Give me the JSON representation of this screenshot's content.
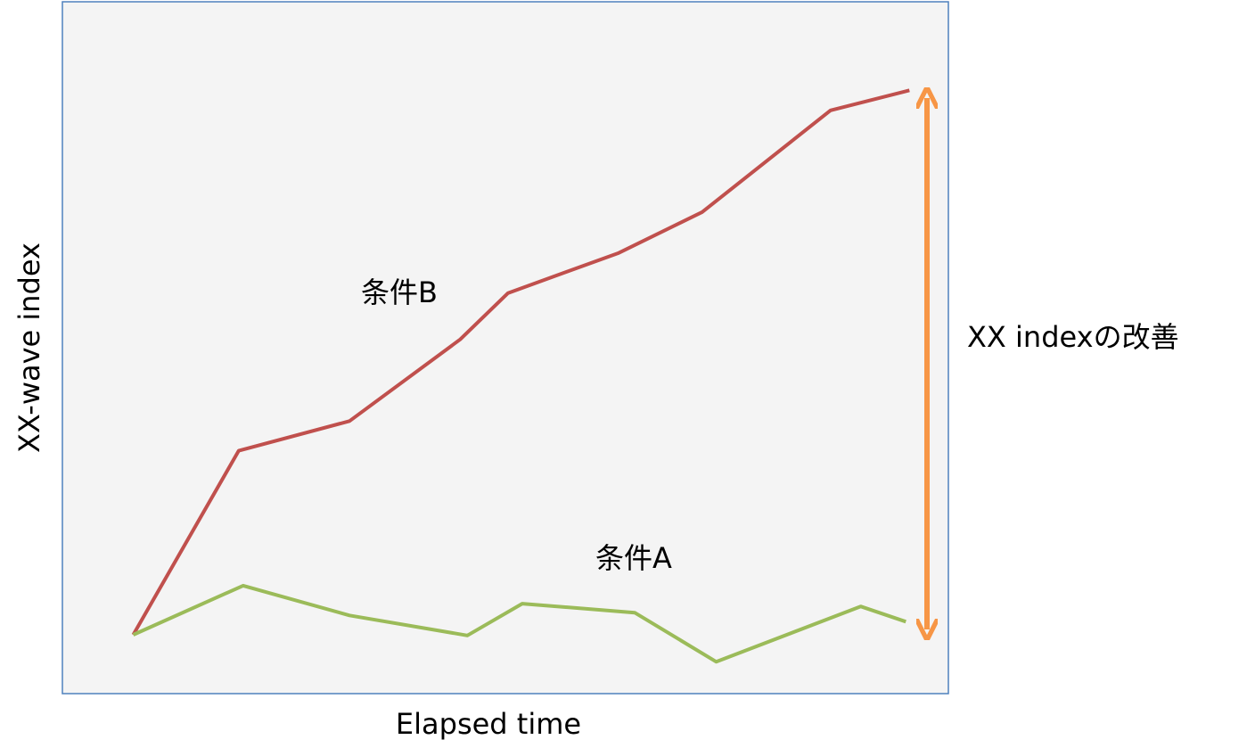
{
  "chart_data": {
    "type": "line",
    "xlabel": "Elapsed time",
    "ylabel": "XX-wave index",
    "xlim": [
      0,
      100
    ],
    "ylim": [
      0,
      100
    ],
    "series": [
      {
        "name": "条件B",
        "color": "#c0504d",
        "x": [
          8.0,
          19.9,
          32.4,
          44.9,
          50.3,
          62.8,
          72.2,
          86.7,
          95.6
        ],
        "values": [
          8.5,
          35.1,
          39.4,
          51.2,
          57.9,
          63.7,
          69.6,
          84.3,
          87.2
        ]
      },
      {
        "name": "条件A",
        "color": "#9bbb59",
        "x": [
          8.0,
          20.4,
          32.4,
          45.7,
          51.9,
          64.6,
          73.8,
          90.1,
          95.2
        ],
        "values": [
          8.5,
          15.6,
          11.3,
          8.4,
          13.0,
          11.7,
          4.6,
          12.6,
          10.4
        ]
      }
    ],
    "annotation": "XX indexの改善"
  }
}
